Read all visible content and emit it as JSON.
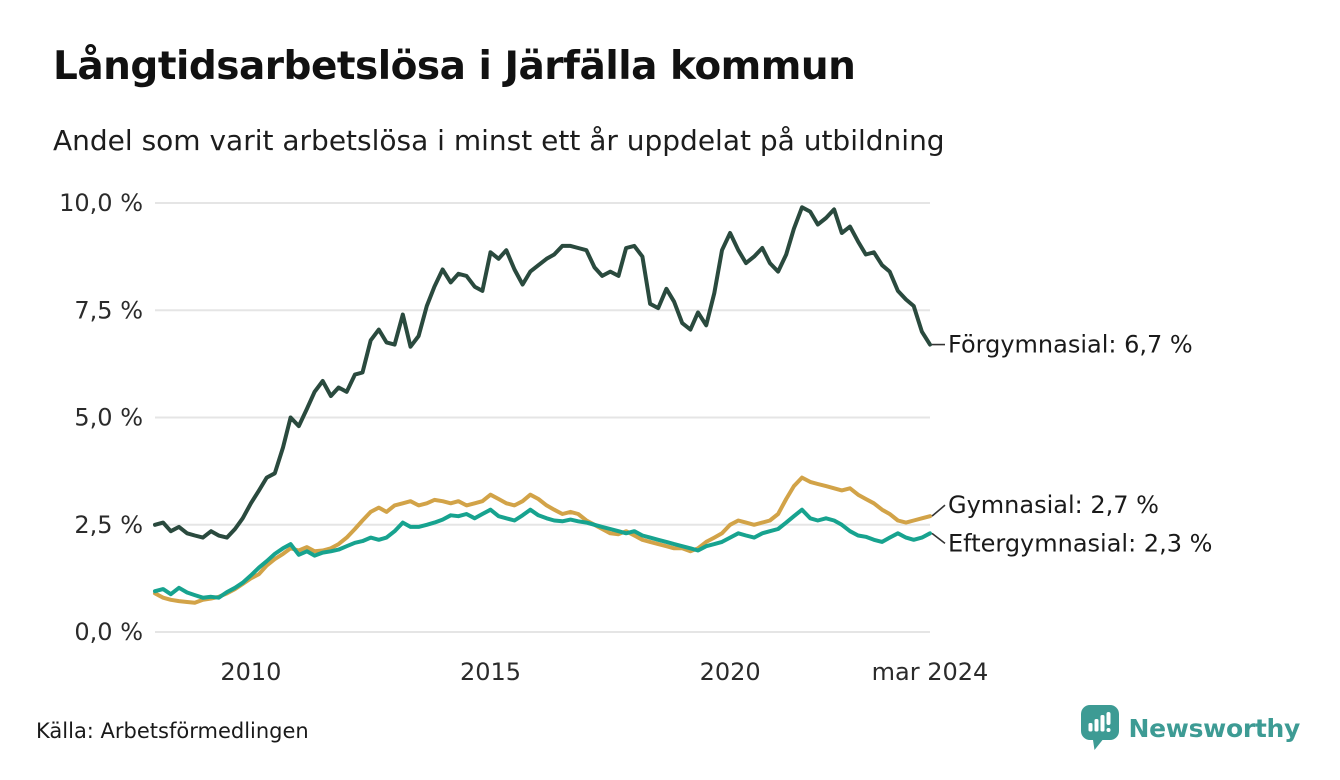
{
  "header": {
    "title": "Långtidsarbetslösa i Järfälla kommun",
    "subtitle": "Andel som varit arbetslösa i minst ett år uppdelat på utbildning"
  },
  "footer": {
    "source": "Källa: Arbetsförmedlingen",
    "brand": "Newsworthy",
    "brand_color": "#3d9b94"
  },
  "chart_data": {
    "type": "line",
    "title": "Långtidsarbetslösa i Järfälla kommun",
    "subtitle": "Andel som varit arbetslösa i minst ett år uppdelat på utbildning",
    "xlabel": "",
    "ylabel": "",
    "xlim": [
      2008,
      2024.17
    ],
    "ylim": [
      0,
      10
    ],
    "grid": "horizontal",
    "grid_color": "#e5e5e5",
    "legend_position": "right-of-line-ends",
    "y_ticks": [
      {
        "value": 0,
        "label": "0,0 %"
      },
      {
        "value": 2.5,
        "label": "2,5 %"
      },
      {
        "value": 5,
        "label": "5,0 %"
      },
      {
        "value": 7.5,
        "label": "7,5 %"
      },
      {
        "value": 10,
        "label": "10,0 %"
      }
    ],
    "x_ticks": [
      {
        "year": 2010,
        "label": "2010"
      },
      {
        "year": 2015,
        "label": "2015"
      },
      {
        "year": 2020,
        "label": "2020"
      },
      {
        "year": 2024.17,
        "label": "mar 2024"
      }
    ],
    "x": [
      2008,
      2008.17,
      2008.33,
      2008.5,
      2008.67,
      2008.83,
      2009,
      2009.17,
      2009.33,
      2009.5,
      2009.67,
      2009.83,
      2010,
      2010.17,
      2010.33,
      2010.5,
      2010.67,
      2010.83,
      2011,
      2011.17,
      2011.33,
      2011.5,
      2011.67,
      2011.83,
      2012,
      2012.17,
      2012.33,
      2012.5,
      2012.67,
      2012.83,
      2013,
      2013.17,
      2013.33,
      2013.5,
      2013.67,
      2013.83,
      2014,
      2014.17,
      2014.33,
      2014.5,
      2014.67,
      2014.83,
      2015,
      2015.17,
      2015.33,
      2015.5,
      2015.67,
      2015.83,
      2016,
      2016.17,
      2016.33,
      2016.5,
      2016.67,
      2016.83,
      2017,
      2017.17,
      2017.33,
      2017.5,
      2017.67,
      2017.83,
      2018,
      2018.17,
      2018.33,
      2018.5,
      2018.67,
      2018.83,
      2019,
      2019.17,
      2019.33,
      2019.5,
      2019.67,
      2019.83,
      2020,
      2020.17,
      2020.33,
      2020.5,
      2020.67,
      2020.83,
      2021,
      2021.17,
      2021.33,
      2021.5,
      2021.67,
      2021.83,
      2022,
      2022.17,
      2022.33,
      2022.5,
      2022.67,
      2022.83,
      2023,
      2023.17,
      2023.33,
      2023.5,
      2023.67,
      2023.83,
      2024,
      2024.17
    ],
    "series": [
      {
        "name": "Förgymnasial",
        "end_label": "Förgymnasial: 6,7 %",
        "end_value": 6.7,
        "color": "#2a4a3e",
        "values": [
          2.5,
          2.55,
          2.35,
          2.45,
          2.3,
          2.25,
          2.2,
          2.35,
          2.25,
          2.2,
          2.4,
          2.65,
          3.0,
          3.3,
          3.6,
          3.7,
          4.3,
          5.0,
          4.8,
          5.2,
          5.6,
          5.85,
          5.5,
          5.7,
          5.6,
          6.0,
          6.05,
          6.8,
          7.05,
          6.75,
          6.7,
          7.4,
          6.65,
          6.9,
          7.6,
          8.05,
          8.45,
          8.15,
          8.35,
          8.3,
          8.05,
          7.95,
          8.85,
          8.7,
          8.9,
          8.45,
          8.1,
          8.4,
          8.55,
          8.7,
          8.8,
          9.0,
          9.0,
          8.95,
          8.9,
          8.5,
          8.3,
          8.4,
          8.3,
          8.95,
          9.0,
          8.75,
          7.65,
          7.55,
          8.0,
          7.7,
          7.2,
          7.05,
          7.45,
          7.15,
          7.9,
          8.9,
          9.3,
          8.9,
          8.6,
          8.75,
          8.95,
          8.6,
          8.4,
          8.8,
          9.4,
          9.9,
          9.8,
          9.5,
          9.65,
          9.85,
          9.3,
          9.45,
          9.1,
          8.8,
          8.85,
          8.55,
          8.4,
          7.95,
          7.75,
          7.6,
          7.0,
          6.7
        ]
      },
      {
        "name": "Gymnasial",
        "end_label": "Gymnasial: 2,7 %",
        "end_value": 2.7,
        "color": "#d2a348",
        "values": [
          0.9,
          0.8,
          0.75,
          0.72,
          0.7,
          0.68,
          0.75,
          0.78,
          0.82,
          0.9,
          1.0,
          1.12,
          1.25,
          1.35,
          1.55,
          1.7,
          1.82,
          1.95,
          1.9,
          1.98,
          1.88,
          1.9,
          1.95,
          2.05,
          2.2,
          2.4,
          2.6,
          2.8,
          2.9,
          2.8,
          2.95,
          3.0,
          3.05,
          2.95,
          3.0,
          3.08,
          3.05,
          3.0,
          3.05,
          2.95,
          3.0,
          3.05,
          3.2,
          3.1,
          3.0,
          2.95,
          3.05,
          3.2,
          3.1,
          2.95,
          2.85,
          2.75,
          2.8,
          2.75,
          2.6,
          2.5,
          2.4,
          2.3,
          2.28,
          2.35,
          2.25,
          2.15,
          2.1,
          2.05,
          2.0,
          1.95,
          1.95,
          1.88,
          1.95,
          2.1,
          2.2,
          2.3,
          2.5,
          2.6,
          2.55,
          2.5,
          2.55,
          2.6,
          2.75,
          3.1,
          3.4,
          3.6,
          3.5,
          3.45,
          3.4,
          3.35,
          3.3,
          3.35,
          3.2,
          3.1,
          3.0,
          2.85,
          2.75,
          2.6,
          2.55,
          2.6,
          2.65,
          2.7
        ]
      },
      {
        "name": "Eftergymnasial",
        "end_label": "Eftergymnasial: 2,3 %",
        "end_value": 2.3,
        "color": "#17a38f",
        "values": [
          0.95,
          1.0,
          0.88,
          1.03,
          0.92,
          0.86,
          0.8,
          0.82,
          0.8,
          0.93,
          1.03,
          1.15,
          1.32,
          1.5,
          1.65,
          1.82,
          1.95,
          2.05,
          1.8,
          1.88,
          1.78,
          1.85,
          1.88,
          1.92,
          2.0,
          2.08,
          2.12,
          2.2,
          2.15,
          2.2,
          2.35,
          2.55,
          2.45,
          2.45,
          2.5,
          2.55,
          2.62,
          2.72,
          2.7,
          2.75,
          2.65,
          2.75,
          2.85,
          2.7,
          2.65,
          2.6,
          2.72,
          2.85,
          2.72,
          2.65,
          2.6,
          2.58,
          2.62,
          2.58,
          2.55,
          2.5,
          2.45,
          2.4,
          2.35,
          2.3,
          2.35,
          2.25,
          2.2,
          2.15,
          2.1,
          2.05,
          2.0,
          1.95,
          1.9,
          2.0,
          2.05,
          2.1,
          2.2,
          2.3,
          2.25,
          2.2,
          2.3,
          2.35,
          2.4,
          2.55,
          2.7,
          2.85,
          2.65,
          2.6,
          2.65,
          2.6,
          2.5,
          2.35,
          2.25,
          2.22,
          2.15,
          2.1,
          2.2,
          2.3,
          2.2,
          2.15,
          2.2,
          2.3
        ]
      }
    ]
  }
}
